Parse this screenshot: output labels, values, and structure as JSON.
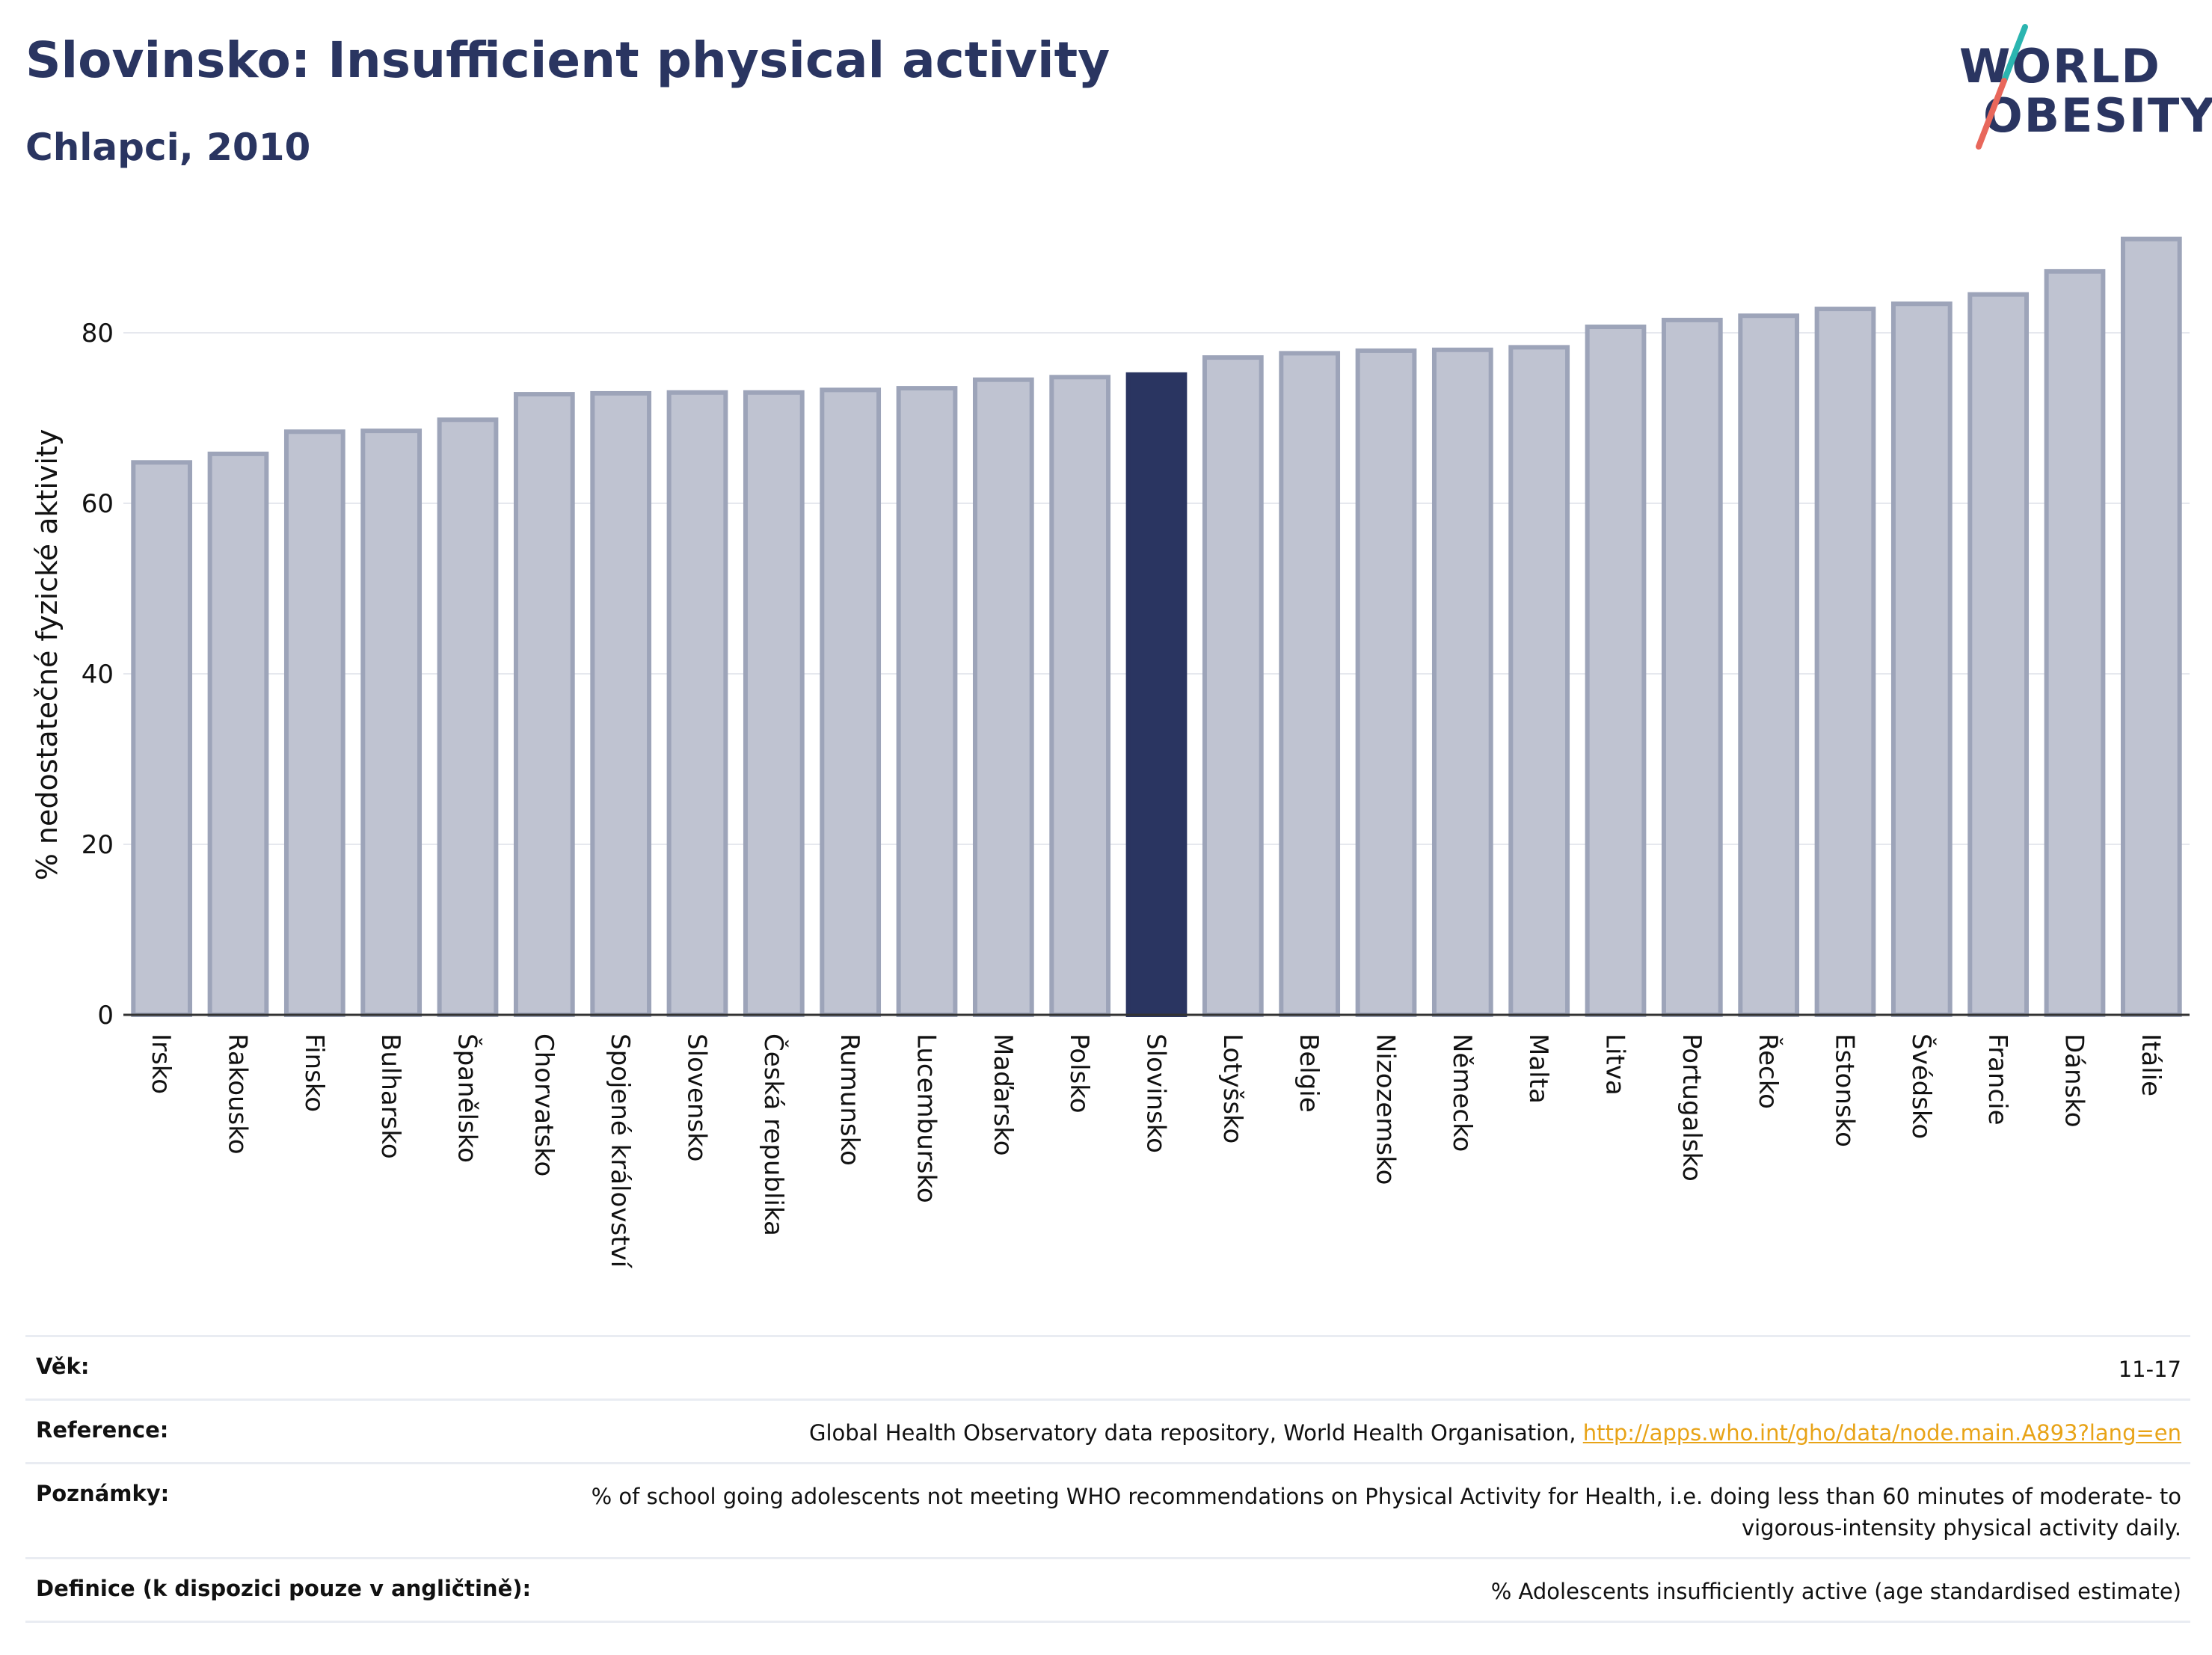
{
  "header": {
    "title": "Slovinsko: Insufficient physical activity",
    "subtitle": "Chlapci, 2010"
  },
  "logo": {
    "line1": "WORLD",
    "line2": "OBESITY"
  },
  "colors": {
    "brand": "#2a3561",
    "bar_default": "#bfc3d1",
    "bar_border": "#9da4b9",
    "bar_highlight": "#2a3561",
    "logo_teal": "#2bb5b0",
    "logo_coral": "#e8675b",
    "link": "#e8a317"
  },
  "chart_data": {
    "type": "bar",
    "ylabel": "% nedostatečné fyzické aktivity",
    "xlabel": "",
    "ylim": [
      0,
      95
    ],
    "yticks": [
      0,
      20,
      40,
      60,
      80
    ],
    "grid": true,
    "highlight": "Slovinsko",
    "categories": [
      "Irsko",
      "Rakousko",
      "Finsko",
      "Bulharsko",
      "Španělsko",
      "Chorvatsko",
      "Spojené království",
      "Slovensko",
      "Česká republika",
      "Rumunsko",
      "Lucembursko",
      "Maďarsko",
      "Polsko",
      "Slovinsko",
      "Lotyšsko",
      "Belgie",
      "Nizozemsko",
      "Německo",
      "Malta",
      "Litva",
      "Portugalsko",
      "Řecko",
      "Estonsko",
      "Švédsko",
      "Francie",
      "Dánsko",
      "Itálie"
    ],
    "values": [
      64.8,
      65.8,
      68.4,
      68.5,
      69.8,
      72.8,
      72.9,
      73.0,
      73.0,
      73.3,
      73.5,
      74.5,
      74.8,
      75.1,
      77.1,
      77.6,
      77.9,
      78.0,
      78.3,
      80.7,
      81.5,
      82.0,
      82.8,
      83.4,
      84.5,
      87.2,
      91.0
    ]
  },
  "meta": {
    "age_label": "Věk:",
    "age_value": "11-17",
    "reference_label": "Reference:",
    "reference_text": "Global Health Observatory data repository, World Health Organisation, ",
    "reference_link": "http://apps.who.int/gho/data/node.main.A893?lang=en",
    "notes_label": "Poznámky:",
    "notes_value": "% of school going adolescents not meeting WHO recommendations on Physical Activity for Health, i.e. doing less than 60 minutes of moderate- to vigorous-intensity physical activity daily.",
    "definition_label": "Definice (k dispozici pouze v angličtině):",
    "definition_value": "% Adolescents insufficiently active (age standardised estimate)"
  }
}
